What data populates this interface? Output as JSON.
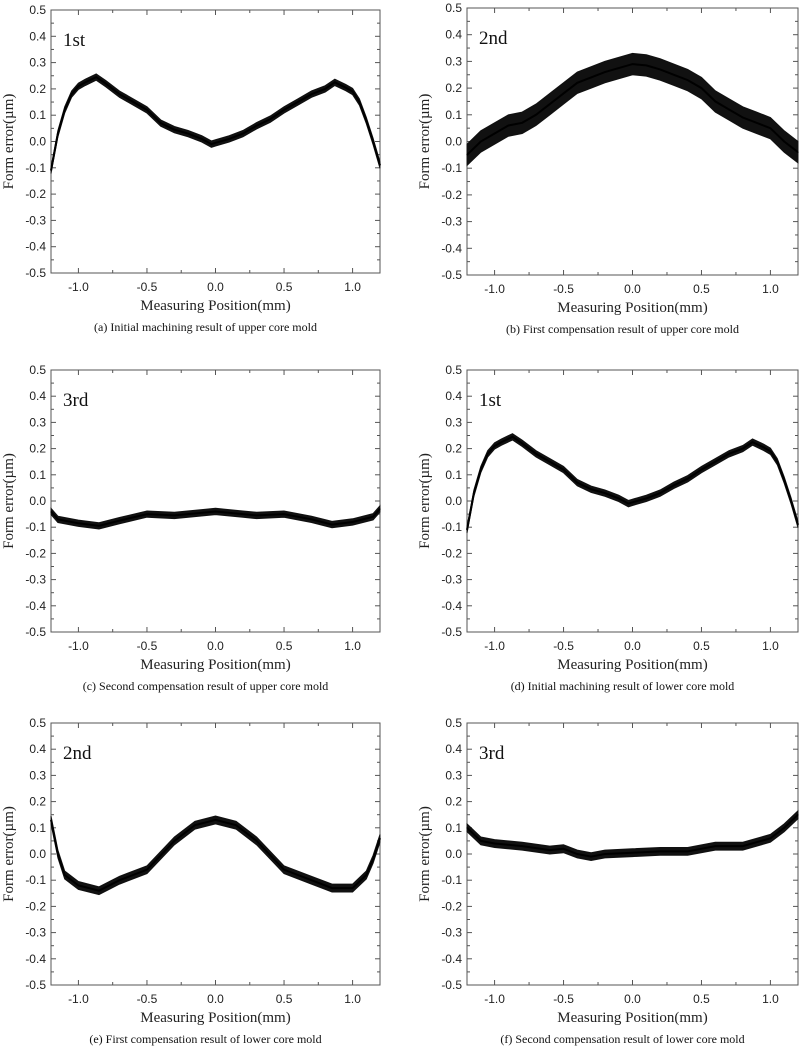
{
  "chart_data": [
    {
      "id": "a",
      "type": "line",
      "run_label": "1st",
      "caption": "(a) Initial machining result of upper core mold",
      "xlabel": "Measuring Position(mm)",
      "ylabel": "Form error(µm)",
      "xlim": [
        -1.2,
        1.2
      ],
      "ylim": [
        -0.5,
        0.5
      ],
      "xticks": [
        "-1.0",
        "-0.5",
        "0.0",
        "0.5",
        "1.0"
      ],
      "yticks": [
        "0.5",
        "0.4",
        "0.3",
        "0.2",
        "0.1",
        "0.0",
        "-0.1",
        "-0.2",
        "-0.3",
        "-0.4",
        "-0.5"
      ],
      "noise_band": 0.012,
      "x": [
        -1.2,
        -1.15,
        -1.1,
        -1.05,
        -1.0,
        -0.95,
        -0.87,
        -0.8,
        -0.7,
        -0.6,
        -0.5,
        -0.4,
        -0.3,
        -0.2,
        -0.1,
        -0.03,
        0.0,
        0.1,
        0.2,
        0.3,
        0.4,
        0.5,
        0.6,
        0.7,
        0.8,
        0.87,
        0.95,
        1.0,
        1.05,
        1.1,
        1.15,
        1.2
      ],
      "y": [
        -0.11,
        0.03,
        0.12,
        0.18,
        0.21,
        0.225,
        0.245,
        0.22,
        0.18,
        0.15,
        0.12,
        0.07,
        0.045,
        0.03,
        0.01,
        -0.01,
        -0.005,
        0.01,
        0.03,
        0.06,
        0.085,
        0.12,
        0.15,
        0.18,
        0.2,
        0.225,
        0.205,
        0.19,
        0.15,
        0.08,
        0.0,
        -0.09
      ]
    },
    {
      "id": "b",
      "type": "line",
      "run_label": "2nd",
      "caption": "(b) First compensation result of upper core mold",
      "xlabel": "Measuring Position(mm)",
      "ylabel": "Form error(µm)",
      "xlim": [
        -1.2,
        1.2
      ],
      "ylim": [
        -0.5,
        0.5
      ],
      "xticks": [
        "-1.0",
        "-0.5",
        "0.0",
        "0.5",
        "1.0"
      ],
      "yticks": [
        "0.5",
        "0.4",
        "0.3",
        "0.2",
        "0.1",
        "0.0",
        "-0.1",
        "-0.2",
        "-0.3",
        "-0.4",
        "-0.5"
      ],
      "noise_band": 0.04,
      "x": [
        -1.2,
        -1.1,
        -1.0,
        -0.9,
        -0.8,
        -0.7,
        -0.6,
        -0.5,
        -0.4,
        -0.3,
        -0.2,
        -0.1,
        0.0,
        0.1,
        0.2,
        0.3,
        0.4,
        0.5,
        0.6,
        0.7,
        0.8,
        0.9,
        1.0,
        1.1,
        1.2
      ],
      "y": [
        -0.05,
        0.0,
        0.03,
        0.06,
        0.07,
        0.1,
        0.14,
        0.18,
        0.22,
        0.24,
        0.26,
        0.275,
        0.29,
        0.285,
        0.27,
        0.25,
        0.23,
        0.2,
        0.15,
        0.12,
        0.09,
        0.07,
        0.05,
        0.0,
        -0.04
      ]
    },
    {
      "id": "c",
      "type": "line",
      "run_label": "3rd",
      "caption": "(c) Second compensation result of upper core mold",
      "xlabel": "Measuring Position(mm)",
      "ylabel": "Form error(µm)",
      "xlim": [
        -1.2,
        1.2
      ],
      "ylim": [
        -0.5,
        0.5
      ],
      "xticks": [
        "-1.0",
        "-0.5",
        "0.0",
        "0.5",
        "1.0"
      ],
      "yticks": [
        "0.5",
        "0.4",
        "0.3",
        "0.2",
        "0.1",
        "0.0",
        "-0.1",
        "-0.2",
        "-0.3",
        "-0.4",
        "-0.5"
      ],
      "noise_band": 0.012,
      "x": [
        -1.2,
        -1.15,
        -1.0,
        -0.85,
        -0.7,
        -0.5,
        -0.3,
        0.0,
        0.2,
        0.3,
        0.5,
        0.7,
        0.85,
        1.0,
        1.15,
        1.2
      ],
      "y": [
        -0.04,
        -0.07,
        -0.085,
        -0.095,
        -0.075,
        -0.05,
        -0.055,
        -0.04,
        -0.05,
        -0.055,
        -0.05,
        -0.07,
        -0.09,
        -0.08,
        -0.06,
        -0.03
      ]
    },
    {
      "id": "d",
      "type": "line",
      "run_label": "1st",
      "caption": "(d) Initial machining result of lower core mold",
      "xlabel": "Measuring Position(mm)",
      "ylabel": "Form error(µm)",
      "xlim": [
        -1.2,
        1.2
      ],
      "ylim": [
        -0.5,
        0.5
      ],
      "xticks": [
        "-1.0",
        "-0.5",
        "0.0",
        "0.5",
        "1.0"
      ],
      "yticks": [
        "0.5",
        "0.4",
        "0.3",
        "0.2",
        "0.1",
        "0.0",
        "-0.1",
        "-0.2",
        "-0.3",
        "-0.4",
        "-0.5"
      ],
      "noise_band": 0.012,
      "x": [
        -1.2,
        -1.15,
        -1.1,
        -1.05,
        -1.0,
        -0.95,
        -0.87,
        -0.8,
        -0.7,
        -0.6,
        -0.5,
        -0.4,
        -0.3,
        -0.2,
        -0.1,
        -0.03,
        0.0,
        0.1,
        0.2,
        0.3,
        0.4,
        0.5,
        0.6,
        0.7,
        0.8,
        0.87,
        0.95,
        1.0,
        1.05,
        1.1,
        1.15,
        1.2
      ],
      "y": [
        -0.11,
        0.03,
        0.12,
        0.18,
        0.21,
        0.225,
        0.245,
        0.22,
        0.18,
        0.15,
        0.12,
        0.07,
        0.045,
        0.03,
        0.01,
        -0.01,
        -0.005,
        0.01,
        0.03,
        0.06,
        0.085,
        0.12,
        0.15,
        0.18,
        0.2,
        0.225,
        0.205,
        0.19,
        0.15,
        0.08,
        0.0,
        -0.09
      ]
    },
    {
      "id": "e",
      "type": "line",
      "run_label": "2nd",
      "caption": "(e) First compensation result of lower core mold",
      "xlabel": "Measuring Position(mm)",
      "ylabel": "Form error(µm)",
      "xlim": [
        -1.2,
        1.2
      ],
      "ylim": [
        -0.5,
        0.5
      ],
      "xticks": [
        "-1.0",
        "-0.5",
        "0.0",
        "0.5",
        "1.0"
      ],
      "yticks": [
        "0.5",
        "0.4",
        "0.3",
        "0.2",
        "0.1",
        "0.0",
        "-0.1",
        "-0.2",
        "-0.3",
        "-0.4",
        "-0.5"
      ],
      "noise_band": 0.015,
      "x": [
        -1.2,
        -1.15,
        -1.1,
        -1.0,
        -0.85,
        -0.7,
        -0.5,
        -0.3,
        -0.15,
        0.0,
        0.15,
        0.3,
        0.5,
        0.7,
        0.85,
        1.0,
        1.1,
        1.15,
        1.2
      ],
      "y": [
        0.13,
        0.0,
        -0.08,
        -0.12,
        -0.14,
        -0.1,
        -0.06,
        0.05,
        0.11,
        0.13,
        0.11,
        0.05,
        -0.06,
        -0.1,
        -0.13,
        -0.13,
        -0.08,
        -0.02,
        0.06
      ]
    },
    {
      "id": "f",
      "type": "line",
      "run_label": "3rd",
      "caption": "(f) Second compensation result of lower core mold",
      "xlabel": "Measuring Position(mm)",
      "ylabel": "Form error(µm)",
      "xlim": [
        -1.2,
        1.2
      ],
      "ylim": [
        -0.5,
        0.5
      ],
      "xticks": [
        "-1.0",
        "-0.5",
        "0.0",
        "0.5",
        "1.0"
      ],
      "yticks": [
        "0.5",
        "0.4",
        "0.3",
        "0.2",
        "0.1",
        "0.0",
        "-0.1",
        "-0.2",
        "-0.3",
        "-0.4",
        "-0.5"
      ],
      "noise_band": 0.015,
      "x": [
        -1.2,
        -1.1,
        -1.0,
        -0.8,
        -0.6,
        -0.5,
        -0.4,
        -0.3,
        -0.2,
        0.0,
        0.2,
        0.4,
        0.6,
        0.8,
        1.0,
        1.1,
        1.2
      ],
      "y": [
        0.1,
        0.05,
        0.04,
        0.03,
        0.015,
        0.02,
        0.0,
        -0.01,
        0.0,
        0.005,
        0.01,
        0.01,
        0.03,
        0.03,
        0.06,
        0.1,
        0.15
      ]
    }
  ]
}
